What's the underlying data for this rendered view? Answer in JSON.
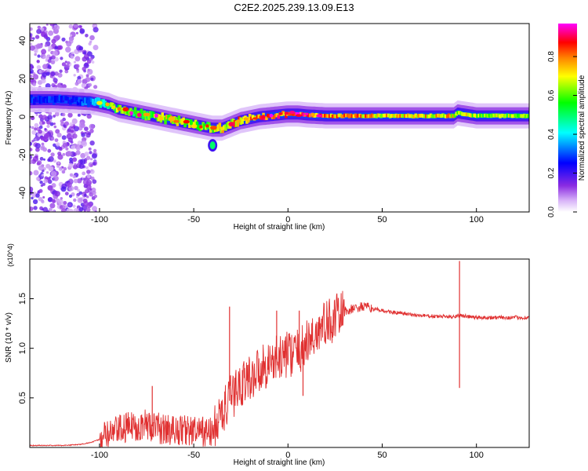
{
  "title": "C2E2.2025.239.13.09.E13",
  "chart_data": [
    {
      "type": "heatmap",
      "panel": "top",
      "xlabel": "Height of straight line (km)",
      "ylabel": "Frequency (Hz)",
      "xlim": [
        -137,
        128
      ],
      "ylim": [
        -50,
        49
      ],
      "xticks": [
        -100,
        -50,
        0,
        50,
        100
      ],
      "yticks": [
        -40,
        -20,
        0,
        20,
        40
      ],
      "colorbar": {
        "label": "Normalized spectral amplitude",
        "range": [
          0,
          0.97
        ],
        "ticks": [
          0.0,
          0.2,
          0.4,
          0.6,
          0.8
        ],
        "tick_labels": [
          "0.0",
          "0.2",
          "0.4",
          "0.6",
          "0.8"
        ],
        "colormap_stops": [
          "#ffffff",
          "#8a2be2",
          "#0000ff",
          "#00ffff",
          "#00ff00",
          "#ffff00",
          "#ff8000",
          "#ff0000",
          "#ff00ff"
        ]
      },
      "ridge": {
        "x": [
          -137,
          -125,
          -115,
          -105,
          -100,
          -95,
          -90,
          -85,
          -80,
          -75,
          -70,
          -65,
          -60,
          -55,
          -50,
          -45,
          -40,
          -35,
          -30,
          -25,
          -20,
          -15,
          -10,
          -5,
          0,
          5,
          10,
          20,
          30,
          50,
          70,
          88,
          90,
          100,
          110,
          128
        ],
        "freq": [
          9,
          9,
          8.5,
          8,
          7,
          6,
          4,
          3,
          2,
          1,
          0,
          -1,
          -2,
          -3,
          -4,
          -5,
          -6,
          -6,
          -4,
          -2,
          -1,
          0,
          0.5,
          1,
          1.5,
          1.5,
          1,
          0.5,
          0.5,
          0.5,
          0.5,
          0.5,
          2,
          0.5,
          0.5,
          0.5
        ],
        "amplitude": [
          0.3,
          0.3,
          0.3,
          0.35,
          0.45,
          0.6,
          0.7,
          0.65,
          0.6,
          0.65,
          0.7,
          0.75,
          0.8,
          0.75,
          0.7,
          0.65,
          0.7,
          0.75,
          0.8,
          0.85,
          0.85,
          0.9,
          0.9,
          0.9,
          0.9,
          0.95,
          0.95,
          0.9,
          0.85,
          0.8,
          0.8,
          0.8,
          0.75,
          0.7,
          0.7,
          0.7
        ]
      },
      "noise_region_x": [
        -137,
        -102
      ],
      "blob": {
        "x": -40,
        "freq": -15,
        "amplitude": 0.5
      }
    },
    {
      "type": "line",
      "panel": "bottom",
      "xlabel": "Height of straight line (km)",
      "ylabel": "SNR (10 * v/v)",
      "y_multiplier": "(x10^4)",
      "xlim": [
        -137,
        128
      ],
      "ylim": [
        0,
        1.9
      ],
      "xticks": [
        -100,
        -50,
        0,
        50,
        100
      ],
      "yticks": [
        0.5,
        1.0,
        1.5
      ],
      "ytick_labels": [
        "0.5",
        "1.0",
        "1.5"
      ],
      "series": [
        {
          "name": "SNR",
          "color": "#e03030",
          "x": [
            -137,
            -120,
            -110,
            -105,
            -100,
            -95,
            -90,
            -85,
            -80,
            -75,
            -70,
            -65,
            -60,
            -55,
            -50,
            -45,
            -40,
            -35,
            -30,
            -25,
            -20,
            -15,
            -10,
            -5,
            0,
            5,
            10,
            15,
            20,
            25,
            30,
            35,
            40,
            45,
            50,
            60,
            70,
            80,
            85,
            88,
            90,
            92,
            95,
            100,
            110,
            120,
            128
          ],
          "y": [
            0.02,
            0.02,
            0.03,
            0.05,
            0.08,
            0.13,
            0.17,
            0.2,
            0.22,
            0.23,
            0.2,
            0.18,
            0.17,
            0.18,
            0.16,
            0.15,
            0.15,
            0.35,
            0.5,
            0.65,
            0.7,
            0.8,
            0.85,
            0.9,
            0.95,
            0.95,
            1.05,
            1.15,
            1.25,
            1.3,
            1.37,
            1.4,
            1.42,
            1.4,
            1.38,
            1.35,
            1.33,
            1.32,
            1.32,
            1.32,
            1.33,
            1.33,
            1.32,
            1.31,
            1.31,
            1.31,
            1.31
          ],
          "spikes": [
            {
              "x": -31,
              "y": 1.42
            },
            {
              "x": -72,
              "y": 0.62
            },
            {
              "x": -6,
              "y": 1.38
            },
            {
              "x": 6,
              "y": 1.38
            },
            {
              "x": 8,
              "y": 0.52
            },
            {
              "x": 91,
              "y": 1.88
            },
            {
              "x": 91,
              "y": 0.6
            }
          ]
        }
      ]
    }
  ]
}
